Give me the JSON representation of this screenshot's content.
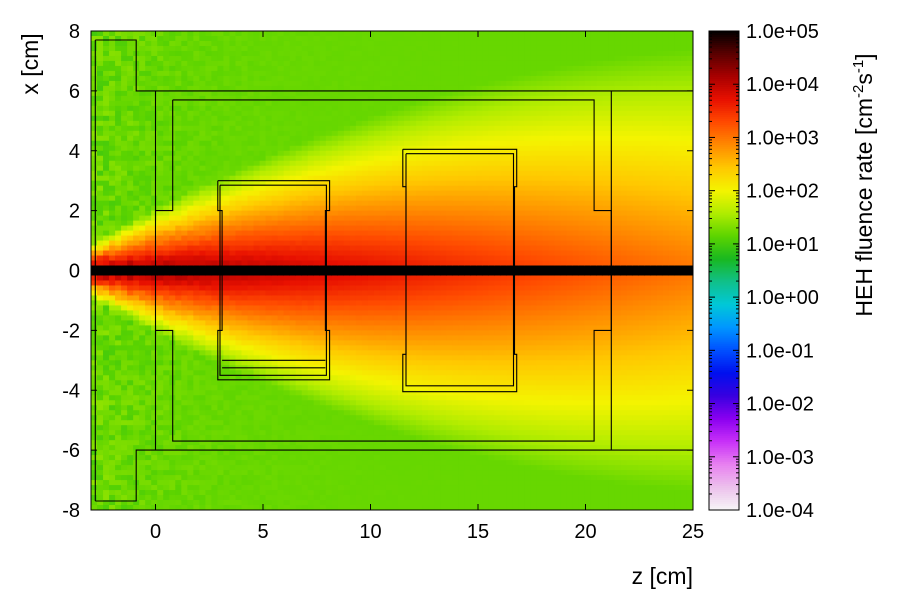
{
  "chart_data": {
    "type": "heatmap",
    "title": "",
    "xlabel": "z [cm]",
    "ylabel": "x [cm]",
    "xlim": [
      -3,
      25
    ],
    "ylim": [
      -8,
      8
    ],
    "x_ticks": [
      0,
      5,
      10,
      15,
      20,
      25
    ],
    "y_ticks": [
      -8,
      -6,
      -4,
      -2,
      0,
      2,
      4,
      6,
      8
    ],
    "colorbar": {
      "label_main": "HEH fluence rate [cm",
      "label_exp1": "-2",
      "label_mid": "s",
      "label_exp2": "-1",
      "label_end": "]",
      "scale": "log",
      "range": [
        0.0001,
        100000
      ],
      "tick_labels": [
        "1.0e+05",
        "1.0e+04",
        "1.0e+03",
        "1.0e+02",
        "1.0e+01",
        "1.0e+00",
        "1.0e-01",
        "1.0e-02",
        "1.0e-03",
        "1.0e-04"
      ],
      "colors": [
        "#000000",
        "#5a0000",
        "#a80000",
        "#e81000",
        "#ff4a00",
        "#ff8a00",
        "#ffc800",
        "#f4f400",
        "#b0ec00",
        "#5cd400",
        "#19b820",
        "#10c08a",
        "#00c8d8",
        "#0096ff",
        "#0050ff",
        "#0010ee",
        "#3800e0",
        "#8a00f0",
        "#c830f8",
        "#e880f0",
        "#ecc0ec",
        "#f6f6f6"
      ]
    },
    "field_model": {
      "beam_axis_x": 0,
      "source_z": -3,
      "peak_log10": 5.0,
      "core_width_cm": 0.25,
      "background_log10": 1.2,
      "max_halo_log10": 4.4,
      "halo_spread_start": 0.8,
      "halo_spread_slope": 0.34
    },
    "geometry_outlines": [
      [
        [
          -2.8,
          7.7
        ],
        [
          -0.9,
          7.7
        ],
        [
          -0.9,
          6.0
        ],
        [
          25,
          6.0
        ]
      ],
      [
        [
          -2.8,
          -7.7
        ],
        [
          -0.9,
          -7.7
        ],
        [
          -0.9,
          -6.0
        ],
        [
          25,
          -6.0
        ]
      ],
      [
        [
          -2.8,
          7.7
        ],
        [
          -2.8,
          -7.7
        ]
      ],
      [
        [
          0,
          6.0
        ],
        [
          0,
          -6.0
        ]
      ],
      [
        [
          0.8,
          5.7
        ],
        [
          20.4,
          5.7
        ],
        [
          20.4,
          2.0
        ],
        [
          21.2,
          2.0
        ],
        [
          21.2,
          -2.0
        ],
        [
          20.4,
          -2.0
        ],
        [
          20.4,
          -5.7
        ],
        [
          0.8,
          -5.7
        ],
        [
          0.8,
          -2.0
        ],
        [
          0,
          -2.0
        ]
      ],
      [
        [
          0,
          2.0
        ],
        [
          0.8,
          2.0
        ],
        [
          0.8,
          5.7
        ]
      ],
      [
        [
          21.2,
          6.0
        ],
        [
          21.2,
          -6.0
        ]
      ],
      [
        [
          2.9,
          3.0
        ],
        [
          8.1,
          3.0
        ],
        [
          8.1,
          2.0
        ],
        [
          7.9,
          2.0
        ],
        [
          7.9,
          -2.0
        ],
        [
          8.1,
          -2.0
        ],
        [
          8.1,
          -3.65
        ],
        [
          2.9,
          -3.65
        ],
        [
          2.9,
          -2.0
        ],
        [
          3.1,
          -2.0
        ],
        [
          3.1,
          2.0
        ],
        [
          2.9,
          2.0
        ],
        [
          2.9,
          3.0
        ]
      ],
      [
        [
          3.0,
          2.85
        ],
        [
          7.95,
          2.85
        ],
        [
          7.95,
          -3.5
        ],
        [
          3.0,
          -3.5
        ],
        [
          3.0,
          2.85
        ]
      ],
      [
        [
          3.1,
          -3.0
        ],
        [
          7.9,
          -3.0
        ]
      ],
      [
        [
          3.1,
          -3.25
        ],
        [
          7.9,
          -3.25
        ]
      ],
      [
        [
          11.5,
          4.05
        ],
        [
          16.8,
          4.05
        ],
        [
          16.8,
          2.8
        ],
        [
          16.7,
          2.8
        ],
        [
          16.7,
          -2.8
        ],
        [
          16.8,
          -2.8
        ],
        [
          16.8,
          -4.05
        ],
        [
          11.5,
          -4.05
        ],
        [
          11.5,
          -2.8
        ],
        [
          11.65,
          -2.8
        ],
        [
          11.65,
          2.8
        ],
        [
          11.5,
          2.8
        ],
        [
          11.5,
          4.05
        ]
      ],
      [
        [
          11.65,
          3.9
        ],
        [
          16.65,
          3.9
        ],
        [
          16.65,
          -3.85
        ],
        [
          11.65,
          -3.85
        ],
        [
          11.65,
          3.9
        ]
      ]
    ]
  }
}
